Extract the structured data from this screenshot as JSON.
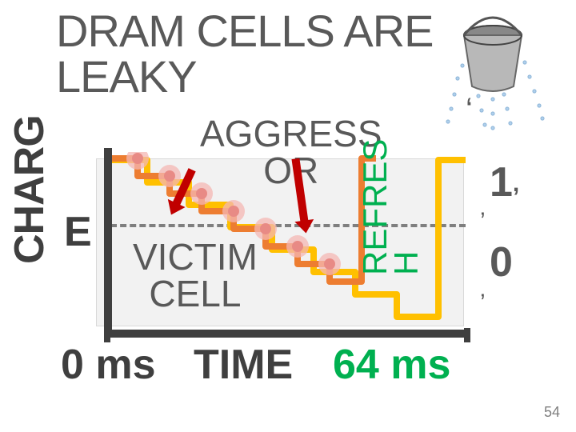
{
  "title_line1": "DRAM CELLS ARE",
  "title_line2": "LEAKY",
  "ylabel": "CHARG",
  "ylabel_e": "E",
  "xlabel_0": "0 ms",
  "xlabel_time": "TIME",
  "xlabel_64": "64 ms",
  "one": "1",
  "zero": "0",
  "aggressor_l1": "AGGRESS",
  "aggressor_l2": "OR",
  "victim_l1": "VICTIM",
  "victim_l2": "CELL",
  "refresh_l1": "REFRES",
  "refresh_l2": "H",
  "page": "54",
  "chart": {
    "bg": "#f2f2f2",
    "axis_color": "#3f3f3f",
    "dash_color": "#7f7f7f",
    "refresh_color": "#00b050",
    "stair_orange": "#ed7d31",
    "stair_yellow": "#ffc000",
    "dot_glow": "#f4b7b3",
    "dot_fill": "#e88a85",
    "steps_orange": [
      [
        0,
        8
      ],
      [
        40,
        8
      ],
      [
        40,
        30
      ],
      [
        80,
        30
      ],
      [
        80,
        52
      ],
      [
        120,
        52
      ],
      [
        120,
        74
      ],
      [
        160,
        74
      ],
      [
        160,
        96
      ],
      [
        200,
        96
      ],
      [
        200,
        118
      ],
      [
        240,
        118
      ],
      [
        240,
        140
      ],
      [
        280,
        140
      ],
      [
        280,
        162
      ],
      [
        320,
        162
      ],
      [
        320,
        60
      ],
      [
        320,
        8
      ],
      [
        338,
        8
      ]
    ],
    "steps_yellow": [
      [
        0,
        10
      ],
      [
        52,
        10
      ],
      [
        52,
        38
      ],
      [
        104,
        38
      ],
      [
        104,
        66
      ],
      [
        156,
        66
      ],
      [
        156,
        94
      ],
      [
        208,
        94
      ],
      [
        208,
        122
      ],
      [
        260,
        122
      ],
      [
        260,
        150
      ],
      [
        312,
        150
      ],
      [
        312,
        178
      ],
      [
        364,
        178
      ],
      [
        364,
        206
      ],
      [
        416,
        206
      ],
      [
        416,
        10
      ],
      [
        450,
        10
      ]
    ],
    "dots": [
      [
        40,
        8
      ],
      [
        80,
        30
      ],
      [
        120,
        52
      ],
      [
        160,
        74
      ],
      [
        200,
        96
      ],
      [
        240,
        118
      ],
      [
        280,
        140
      ]
    ],
    "ticks_x": [
      130,
      580
    ]
  }
}
